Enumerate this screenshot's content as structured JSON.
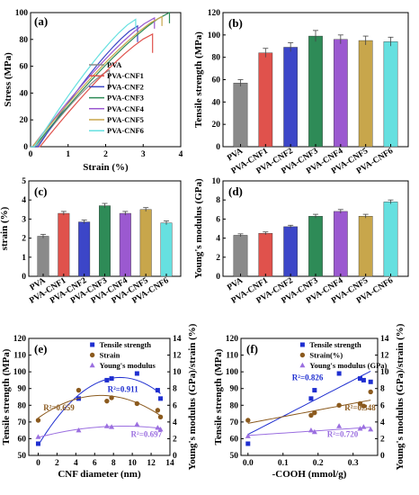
{
  "chart_data": [
    {
      "panel": "(a)",
      "type": "line",
      "xlabel": "Strain (%)",
      "ylabel": "Stress (MPa)",
      "xlim": [
        0,
        4
      ],
      "ylim": [
        0,
        100
      ],
      "xticks": [
        "0",
        "1",
        "2",
        "3",
        "4"
      ],
      "yticks": [
        "0",
        "20",
        "40",
        "60",
        "80",
        "100"
      ],
      "legend_position": "center",
      "series": [
        {
          "name": "PVA",
          "color": "#8a8a8a",
          "x": [
            0,
            0.15,
            2.1,
            2.1
          ],
          "y": [
            0,
            0,
            57,
            43
          ]
        },
        {
          "name": "PVA-CNF1",
          "color": "#e0524c",
          "x": [
            0,
            0.25,
            3.25,
            3.25
          ],
          "y": [
            0,
            0,
            84,
            70
          ]
        },
        {
          "name": "PVA-CNF2",
          "color": "#3c46c8",
          "x": [
            0,
            0.2,
            2.85,
            2.85
          ],
          "y": [
            0,
            0,
            90,
            78
          ]
        },
        {
          "name": "PVA-CNF3",
          "color": "#2e8b57",
          "x": [
            0,
            0.1,
            3.7,
            3.7
          ],
          "y": [
            0,
            0,
            100,
            92
          ]
        },
        {
          "name": "PVA-CNF4",
          "color": "#9b59d0",
          "x": [
            0,
            0.05,
            3.3,
            3.3
          ],
          "y": [
            0,
            0,
            96,
            88
          ]
        },
        {
          "name": "PVA-CNF5",
          "color": "#c8a64b",
          "x": [
            0,
            0.05,
            3.5,
            3.5
          ],
          "y": [
            0,
            0,
            97,
            90
          ]
        },
        {
          "name": "PVA-CNF6",
          "color": "#66e0e0",
          "x": [
            0,
            0.1,
            2.8,
            2.8
          ],
          "y": [
            0,
            0,
            95,
            88
          ]
        }
      ]
    },
    {
      "panel": "(b)",
      "type": "bar",
      "ylabel": "Tensile strength (MPa)",
      "ylim": [
        0,
        120
      ],
      "yticks": [
        "0",
        "20",
        "40",
        "60",
        "80",
        "100",
        "120"
      ],
      "categories": [
        "PVA",
        "PVA-CNF1",
        "PVA-CNF2",
        "PVA-CNF3",
        "PVA-CNF4",
        "PVA-CNF5",
        "PVA-CNF6"
      ],
      "values": [
        57,
        84,
        89,
        99,
        96,
        95,
        94
      ],
      "errors": [
        3,
        4,
        4,
        5,
        4,
        4,
        4
      ]
    },
    {
      "panel": "(c)",
      "type": "bar",
      "ylabel": "strain (%)",
      "ylim": [
        0,
        5
      ],
      "yticks": [
        "0",
        "1",
        "2",
        "3",
        "4",
        "5"
      ],
      "categories": [
        "PVA",
        "PVA-CNF1",
        "PVA-CNF2",
        "PVA-CNF3",
        "PVA-CNF4",
        "PVA-CNF5",
        "PVA-CNF6"
      ],
      "values": [
        2.1,
        3.3,
        2.85,
        3.7,
        3.3,
        3.5,
        2.8
      ],
      "errors": [
        0.1,
        0.1,
        0.1,
        0.12,
        0.1,
        0.1,
        0.1
      ]
    },
    {
      "panel": "(d)",
      "type": "bar",
      "ylabel": "Young's modulus (GPa)",
      "ylim": [
        0,
        10
      ],
      "yticks": [
        "0",
        "2",
        "4",
        "6",
        "8",
        "10"
      ],
      "categories": [
        "PVA",
        "PVA-CNF1",
        "PVA-CNF2",
        "PVA-CNF3",
        "PVA-CNF4",
        "PVA-CNF5",
        "PVA-CNF6"
      ],
      "values": [
        4.3,
        4.5,
        5.2,
        6.3,
        6.8,
        6.3,
        7.8
      ],
      "errors": [
        0.15,
        0.15,
        0.15,
        0.2,
        0.2,
        0.2,
        0.2
      ]
    },
    {
      "panel": "(e)",
      "type": "scatter",
      "xlabel": "CNF diameter (nm)",
      "ylabel": "Tensile strength (MPa)",
      "ylabel2": "Young's modulus (GPa)/strain (%)",
      "xlim": [
        -1,
        14
      ],
      "ylim": [
        50,
        120
      ],
      "ylim2": [
        0,
        14
      ],
      "xticks": [
        "0",
        "2",
        "4",
        "6",
        "8",
        "10",
        "12",
        "14"
      ],
      "yticks": [
        "50",
        "60",
        "70",
        "80",
        "90",
        "100",
        "110",
        "120"
      ],
      "yticks2": [
        "0",
        "2",
        "4",
        "6",
        "8",
        "10",
        "12",
        "14"
      ],
      "legend_position": "top-right",
      "series": [
        {
          "name": "Tensile strength",
          "axis": "left",
          "color": "#1f2fd0",
          "marker": "square",
          "x": [
            0,
            4.3,
            7.3,
            7.8,
            10.5,
            12.7,
            13.0
          ],
          "y": [
            57,
            84,
            95,
            96,
            99,
            89,
            84
          ]
        },
        {
          "name": "Strain",
          "axis": "right",
          "color": "#8b5a1e",
          "marker": "circle",
          "x": [
            0,
            4.3,
            7.3,
            7.8,
            10.5,
            12.7,
            13.0
          ],
          "y": [
            4.2,
            7.8,
            6.5,
            6.9,
            6.2,
            5.4,
            4.6
          ]
        },
        {
          "name": "Young's modulus",
          "axis": "right",
          "color": "#9b6fe0",
          "marker": "triangle",
          "x": [
            0,
            4.3,
            7.3,
            7.8,
            10.5,
            12.7,
            13.0
          ],
          "y": [
            2.2,
            3.0,
            3.5,
            3.4,
            3.7,
            3.3,
            3.1
          ]
        }
      ],
      "annotations": [
        {
          "text": "R²=0.911",
          "color": "#1f2fd0",
          "x": 9.0,
          "y": 88
        },
        {
          "text": "R²=0.659",
          "color": "#8b5a1e",
          "x": 2.2,
          "y": 77
        },
        {
          "text": "R²=0.697",
          "color": "#9b6fe0",
          "x": 11.5,
          "y": 61
        }
      ]
    },
    {
      "panel": "(f)",
      "type": "scatter",
      "xlabel": "-COOH (mmol/g)",
      "ylabel": "Tensile strength (MPa)",
      "ylabel2": "Young's modulus (GPa)/strain (%)",
      "xlim": [
        -0.02,
        0.37
      ],
      "ylim": [
        50,
        120
      ],
      "ylim2": [
        0,
        14
      ],
      "xticks": [
        "0.0",
        "0.1",
        "0.2",
        "0.3"
      ],
      "yticks": [
        "50",
        "60",
        "70",
        "80",
        "90",
        "100",
        "110",
        "120"
      ],
      "yticks2": [
        "0",
        "2",
        "4",
        "6",
        "8",
        "10",
        "12",
        "14"
      ],
      "legend_position": "top-right",
      "series": [
        {
          "name": "Tensile strength",
          "axis": "left",
          "color": "#1f2fd0",
          "marker": "square",
          "x": [
            0,
            0.18,
            0.19,
            0.26,
            0.32,
            0.33,
            0.35
          ],
          "y": [
            57,
            84,
            89,
            99,
            96,
            95,
            94
          ]
        },
        {
          "name": "Strain(%)",
          "axis": "right",
          "color": "#8b5a1e",
          "marker": "circle",
          "x": [
            0,
            0.18,
            0.19,
            0.26,
            0.32,
            0.33,
            0.35
          ],
          "y": [
            4.2,
            4.8,
            5.1,
            6.0,
            6.2,
            5.9,
            7.6
          ]
        },
        {
          "name": "Young's modulus (GPa)",
          "axis": "right",
          "color": "#9b6fe0",
          "marker": "triangle",
          "x": [
            0,
            0.18,
            0.19,
            0.26,
            0.32,
            0.33,
            0.35
          ],
          "y": [
            2.3,
            3.0,
            2.8,
            3.5,
            3.2,
            3.4,
            3.1
          ]
        }
      ],
      "annotations": [
        {
          "text": "R²=0.826",
          "color": "#1f2fd0",
          "x": 0.17,
          "y": 95
        },
        {
          "text": "R²=0.348",
          "color": "#8b5a1e",
          "x": 0.32,
          "y": 77
        },
        {
          "text": "R²=0.720",
          "color": "#9b6fe0",
          "x": 0.27,
          "y": 61
        }
      ]
    }
  ],
  "bar_colors": [
    "#8a8a8a",
    "#e0524c",
    "#3c46c8",
    "#2e8b57",
    "#9b59d0",
    "#c8a64b",
    "#66e0e0"
  ]
}
